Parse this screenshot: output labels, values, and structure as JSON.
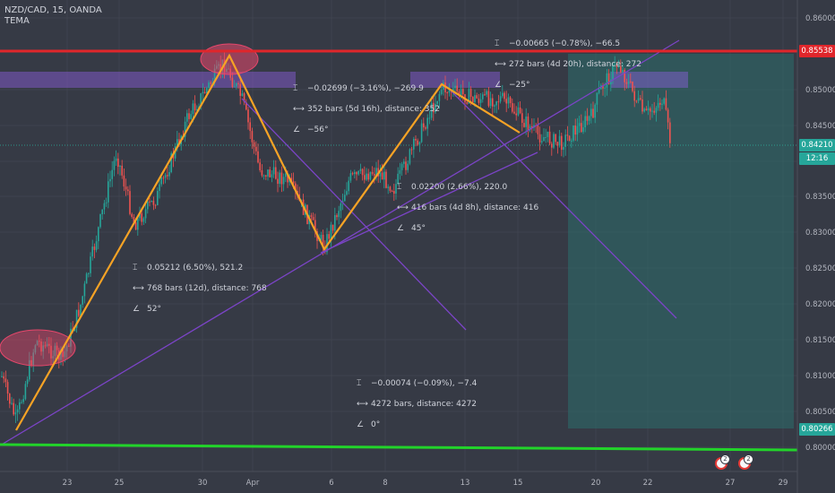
{
  "header": {
    "symbol": "NZD/CAD, 15, OANDA",
    "indicator": "TEMA"
  },
  "colors": {
    "bg": "#363a45",
    "up": "#26a69a",
    "down": "#ef5350",
    "swing": "#f7a325",
    "trend": "#7b44c7",
    "resistance": "#e0262b",
    "support": "#22d32a",
    "target": "#2a7a74"
  },
  "price_axis": {
    "ticks": [
      "0.86000",
      "0.85000",
      "0.84500",
      "0.84000",
      "0.83500",
      "0.83000",
      "0.82500",
      "0.82000",
      "0.81500",
      "0.81000",
      "0.80500",
      "0.80000"
    ],
    "tag_red": "0.85538",
    "tag_current": "0.84210",
    "tag_countdown": "12:16",
    "tag_bottom": "0.80266"
  },
  "time_axis": [
    "23",
    "25",
    "30",
    "Apr",
    "6",
    "8",
    "13",
    "15",
    "20",
    "22",
    "27",
    "29"
  ],
  "measurements": [
    {
      "line1": "0.05212 (6.50%), 521.2",
      "line2": "768 bars (12d), distance: 768",
      "line3": "52°"
    },
    {
      "line1": "−0.02699 (−3.16%), −269.9",
      "line2": "352 bars (5d 16h), distance: 352",
      "line3": "−56°"
    },
    {
      "line1": "0.02200 (2.66%), 220.0",
      "line2": "416 bars (4d 8h), distance: 416",
      "line3": "45°"
    },
    {
      "line1": "−0.00665 (−0.78%), −66.5",
      "line2": "272 bars (4d 20h), distance: 272",
      "line3": "−25°"
    },
    {
      "line1": "−0.00074 (−0.09%), −7.4",
      "line2": "4272 bars, distance: 4272",
      "line3": "0°"
    }
  ],
  "events": [
    {
      "count": "2"
    },
    {
      "count": "2"
    }
  ]
}
